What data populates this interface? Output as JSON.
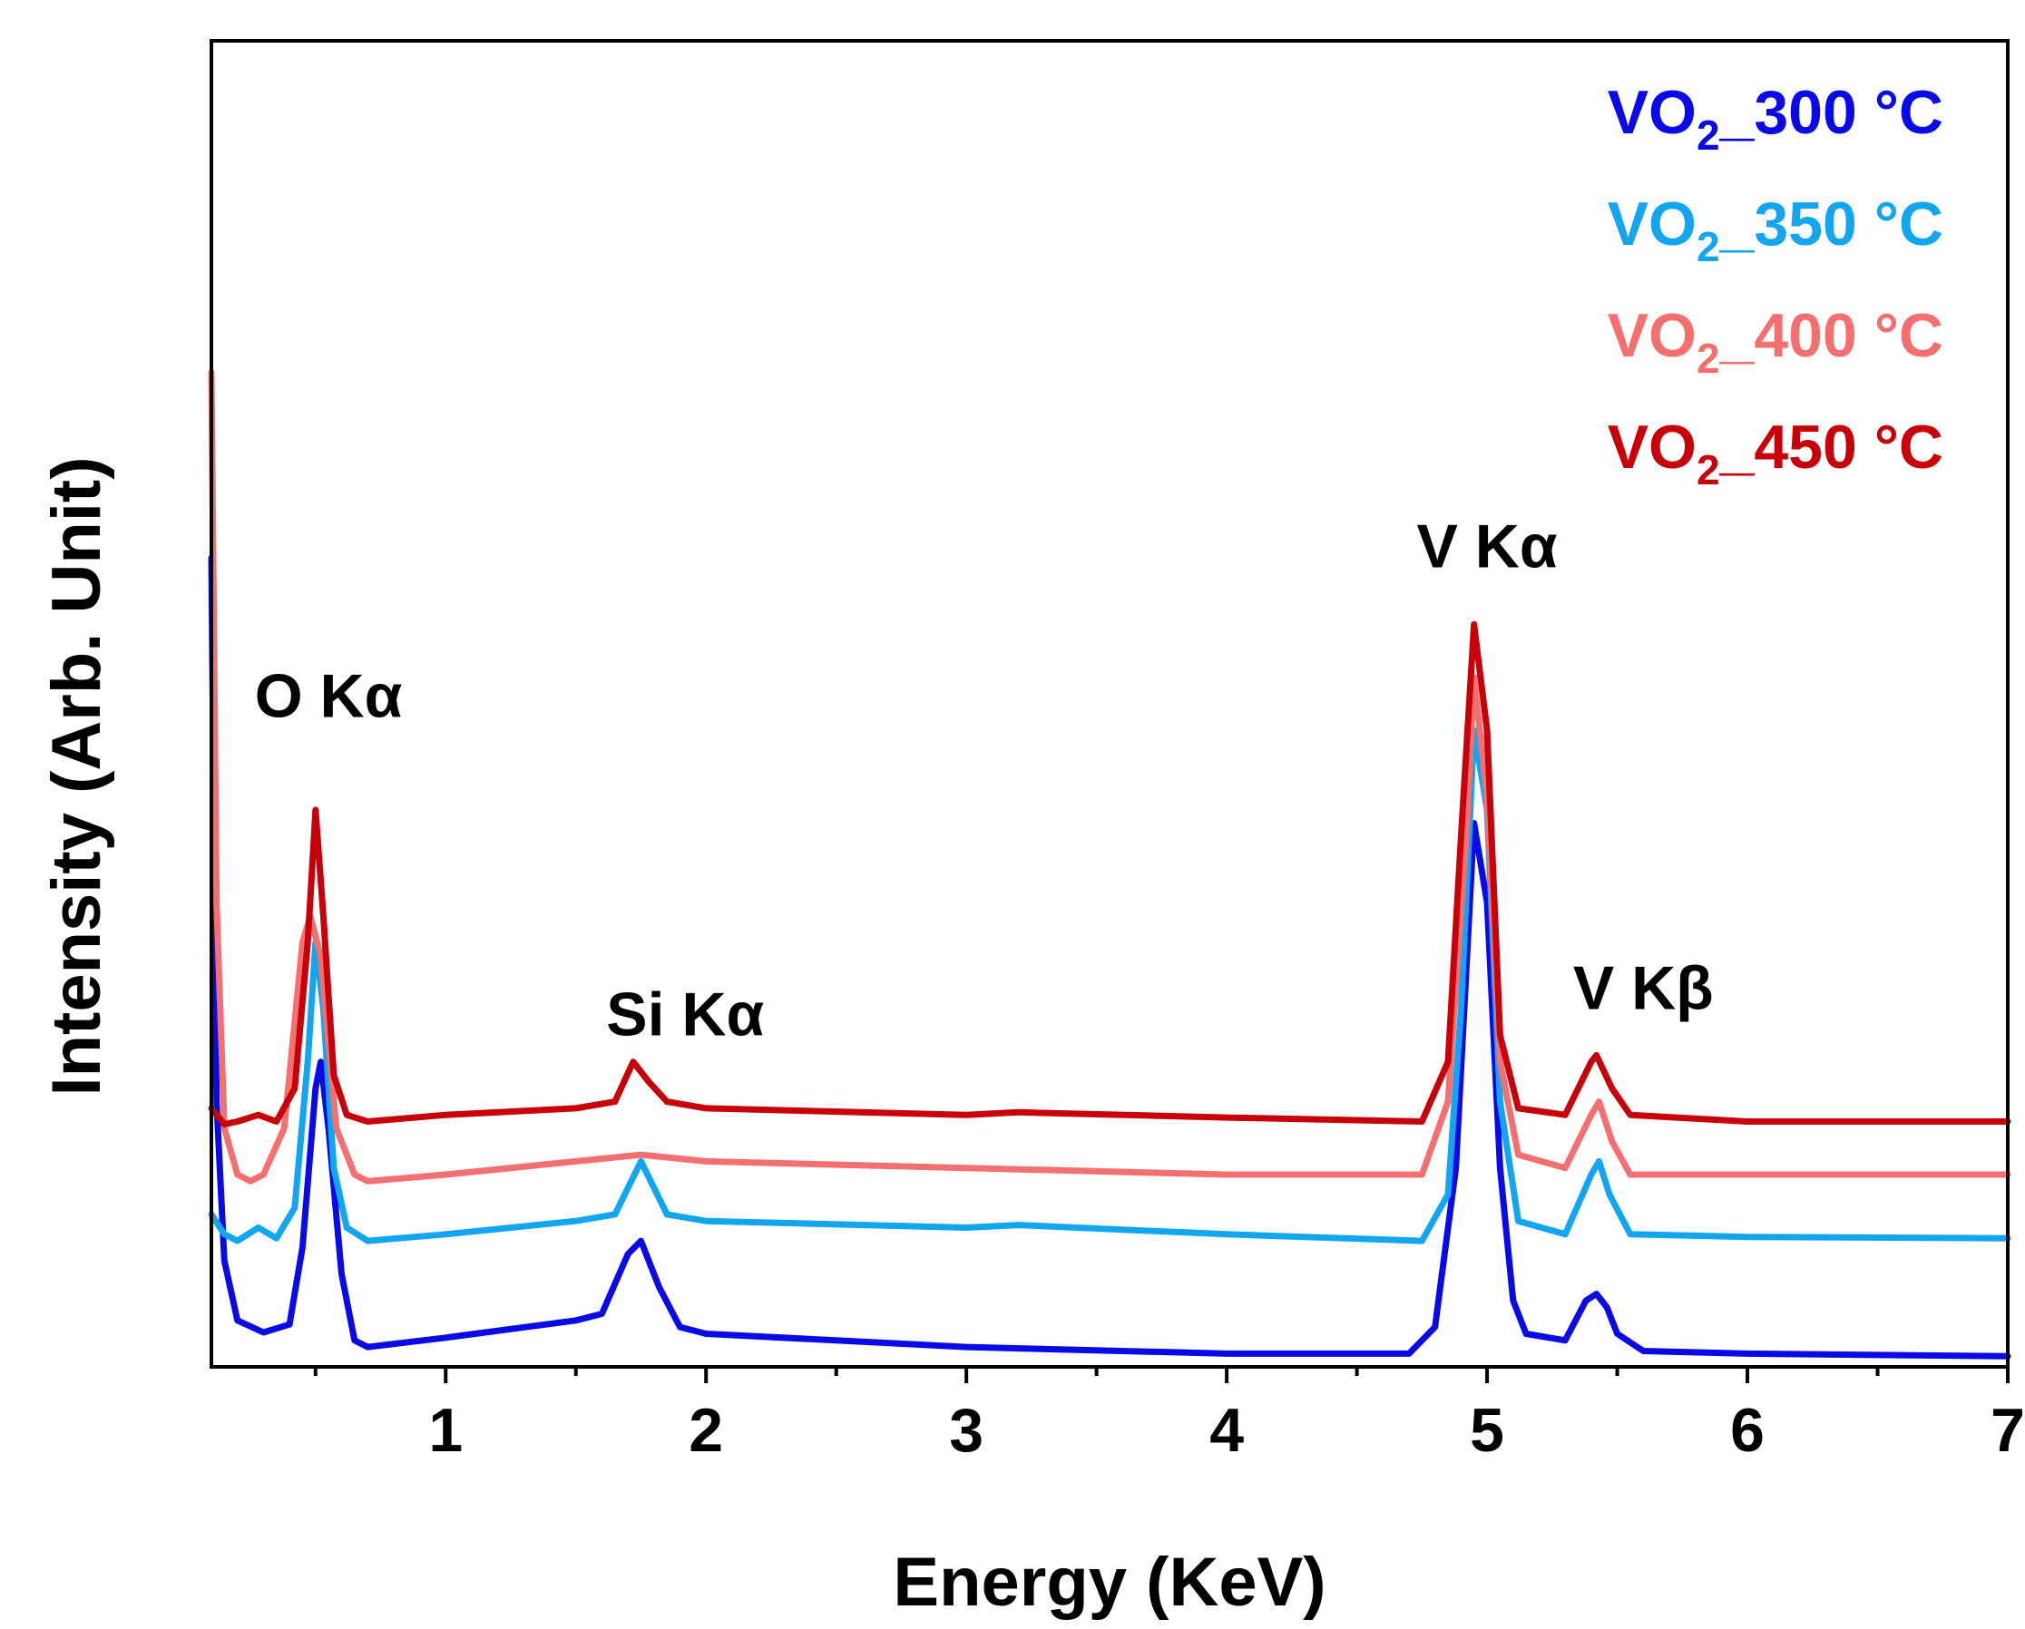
{
  "chart_data": {
    "type": "line",
    "title": "",
    "xlabel": "Energy (KeV)",
    "ylabel": "Intensity (Arb. Unit)",
    "xlim": [
      0.1,
      7
    ],
    "ylim": [
      0,
      10
    ],
    "x_ticks": [
      1,
      2,
      3,
      4,
      5,
      6,
      7
    ],
    "x_minor_step": 0.5,
    "y_ticks_shown": false,
    "legend_position": "top-right",
    "peak_labels": [
      {
        "text": "O Kα",
        "x": 0.55,
        "y": 4.9
      },
      {
        "text": "Si Kα",
        "x": 1.92,
        "y": 2.5
      },
      {
        "text": "V Kα",
        "x": 5.0,
        "y": 6.03
      },
      {
        "text": "V Kβ",
        "x": 5.6,
        "y": 2.7
      }
    ],
    "series": [
      {
        "name": "VO2_300 °C",
        "legend_main": "VO",
        "legend_sub": "2",
        "legend_rest": "_300 °C",
        "color": "#0a0ae6",
        "offset": 0.35,
        "points": [
          [
            0.1,
            6.1
          ],
          [
            0.12,
            2.0
          ],
          [
            0.15,
            0.8
          ],
          [
            0.2,
            0.35
          ],
          [
            0.3,
            0.26
          ],
          [
            0.4,
            0.32
          ],
          [
            0.45,
            0.9
          ],
          [
            0.5,
            2.1
          ],
          [
            0.52,
            2.3
          ],
          [
            0.55,
            1.8
          ],
          [
            0.6,
            0.7
          ],
          [
            0.65,
            0.2
          ],
          [
            0.7,
            0.15
          ],
          [
            1.0,
            0.22
          ],
          [
            1.5,
            0.35
          ],
          [
            1.6,
            0.4
          ],
          [
            1.7,
            0.85
          ],
          [
            1.75,
            0.95
          ],
          [
            1.82,
            0.6
          ],
          [
            1.9,
            0.3
          ],
          [
            2.0,
            0.25
          ],
          [
            3.0,
            0.15
          ],
          [
            4.0,
            0.1
          ],
          [
            4.7,
            0.1
          ],
          [
            4.8,
            0.3
          ],
          [
            4.88,
            1.5
          ],
          [
            4.95,
            4.1
          ],
          [
            5.0,
            3.5
          ],
          [
            5.05,
            1.5
          ],
          [
            5.1,
            0.5
          ],
          [
            5.15,
            0.25
          ],
          [
            5.3,
            0.2
          ],
          [
            5.38,
            0.5
          ],
          [
            5.42,
            0.55
          ],
          [
            5.46,
            0.45
          ],
          [
            5.5,
            0.25
          ],
          [
            5.6,
            0.12
          ],
          [
            6.0,
            0.1
          ],
          [
            7.0,
            0.08
          ]
        ]
      },
      {
        "name": "VO2_350 °C",
        "legend_main": "VO",
        "legend_sub": "2",
        "legend_rest": "_350 °C",
        "color": "#12a5f0",
        "offset": 1.1,
        "points": [
          [
            0.1,
            1.15
          ],
          [
            0.15,
            1.0
          ],
          [
            0.2,
            0.95
          ],
          [
            0.28,
            1.05
          ],
          [
            0.35,
            0.97
          ],
          [
            0.42,
            1.2
          ],
          [
            0.47,
            2.3
          ],
          [
            0.5,
            3.2
          ],
          [
            0.53,
            2.7
          ],
          [
            0.57,
            1.5
          ],
          [
            0.62,
            1.05
          ],
          [
            0.7,
            0.95
          ],
          [
            1.0,
            1.0
          ],
          [
            1.5,
            1.1
          ],
          [
            1.65,
            1.15
          ],
          [
            1.75,
            1.55
          ],
          [
            1.8,
            1.35
          ],
          [
            1.85,
            1.15
          ],
          [
            2.0,
            1.1
          ],
          [
            3.0,
            1.05
          ],
          [
            3.2,
            1.07
          ],
          [
            4.0,
            1.0
          ],
          [
            4.75,
            0.95
          ],
          [
            4.85,
            1.3
          ],
          [
            4.9,
            2.7
          ],
          [
            4.95,
            4.8
          ],
          [
            5.0,
            4.2
          ],
          [
            5.05,
            2.0
          ],
          [
            5.12,
            1.1
          ],
          [
            5.3,
            1.0
          ],
          [
            5.4,
            1.45
          ],
          [
            5.43,
            1.55
          ],
          [
            5.47,
            1.3
          ],
          [
            5.55,
            1.0
          ],
          [
            6.0,
            0.98
          ],
          [
            7.0,
            0.97
          ]
        ]
      },
      {
        "name": "VO2_400 °C",
        "legend_main": "VO",
        "legend_sub": "2",
        "legend_rest": "_400 °C",
        "color": "#f47070",
        "offset": 1.55,
        "points": [
          [
            0.1,
            7.5
          ],
          [
            0.12,
            3.5
          ],
          [
            0.15,
            1.8
          ],
          [
            0.2,
            1.45
          ],
          [
            0.25,
            1.4
          ],
          [
            0.3,
            1.45
          ],
          [
            0.38,
            1.8
          ],
          [
            0.45,
            3.2
          ],
          [
            0.48,
            3.4
          ],
          [
            0.52,
            3.1
          ],
          [
            0.58,
            1.8
          ],
          [
            0.65,
            1.45
          ],
          [
            0.7,
            1.4
          ],
          [
            1.0,
            1.45
          ],
          [
            1.5,
            1.55
          ],
          [
            1.75,
            1.6
          ],
          [
            2.0,
            1.55
          ],
          [
            3.0,
            1.5
          ],
          [
            4.0,
            1.45
          ],
          [
            4.75,
            1.45
          ],
          [
            4.85,
            2.0
          ],
          [
            4.92,
            4.0
          ],
          [
            4.95,
            5.2
          ],
          [
            5.0,
            4.3
          ],
          [
            5.05,
            2.3
          ],
          [
            5.12,
            1.6
          ],
          [
            5.3,
            1.5
          ],
          [
            5.4,
            1.9
          ],
          [
            5.43,
            2.0
          ],
          [
            5.48,
            1.7
          ],
          [
            5.55,
            1.45
          ],
          [
            6.0,
            1.45
          ],
          [
            7.0,
            1.45
          ]
        ]
      },
      {
        "name": "VO2_450 °C",
        "legend_main": "VO",
        "legend_sub": "2",
        "legend_rest": "_450 °C",
        "color": "#c8000a",
        "offset": 1.95,
        "points": [
          [
            0.1,
            1.95
          ],
          [
            0.15,
            1.83
          ],
          [
            0.2,
            1.85
          ],
          [
            0.28,
            1.9
          ],
          [
            0.35,
            1.85
          ],
          [
            0.42,
            2.1
          ],
          [
            0.47,
            3.2
          ],
          [
            0.5,
            4.2
          ],
          [
            0.53,
            3.4
          ],
          [
            0.57,
            2.2
          ],
          [
            0.62,
            1.9
          ],
          [
            0.7,
            1.85
          ],
          [
            1.0,
            1.9
          ],
          [
            1.5,
            1.95
          ],
          [
            1.65,
            2.0
          ],
          [
            1.72,
            2.3
          ],
          [
            1.78,
            2.15
          ],
          [
            1.85,
            2.0
          ],
          [
            2.0,
            1.95
          ],
          [
            3.0,
            1.9
          ],
          [
            3.2,
            1.92
          ],
          [
            4.0,
            1.88
          ],
          [
            4.75,
            1.85
          ],
          [
            4.85,
            2.3
          ],
          [
            4.9,
            4.0
          ],
          [
            4.95,
            5.6
          ],
          [
            5.0,
            4.8
          ],
          [
            5.05,
            2.5
          ],
          [
            5.12,
            1.95
          ],
          [
            5.3,
            1.9
          ],
          [
            5.4,
            2.3
          ],
          [
            5.42,
            2.35
          ],
          [
            5.48,
            2.1
          ],
          [
            5.55,
            1.9
          ],
          [
            6.0,
            1.85
          ],
          [
            7.0,
            1.85
          ]
        ]
      }
    ]
  }
}
